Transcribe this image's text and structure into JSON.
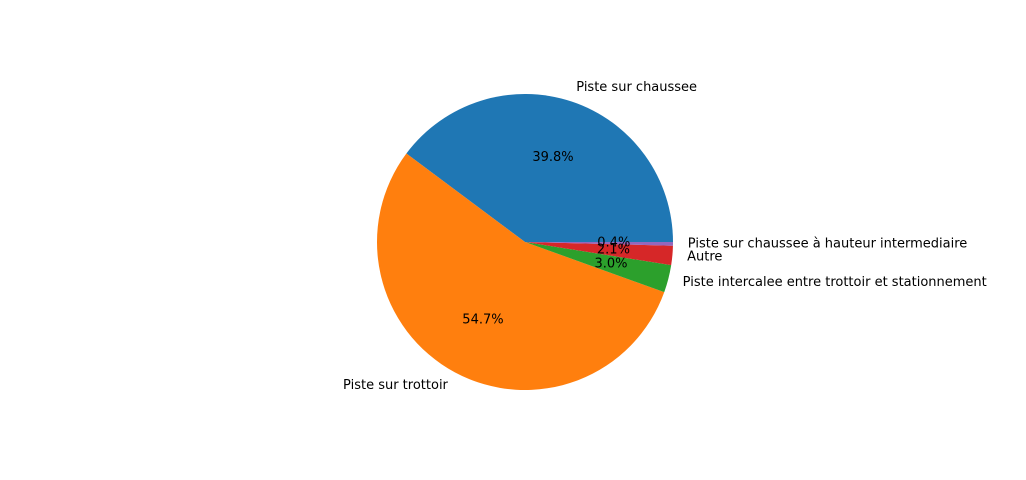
{
  "chart_data": {
    "type": "pie",
    "title": "",
    "start_angle_deg": 0,
    "direction": "counterclockwise",
    "slices": [
      {
        "label": "Piste sur chaussee",
        "value": 39.8,
        "pct_label": "39.8%",
        "color": "#1f77b4"
      },
      {
        "label": "Piste sur trottoir",
        "value": 54.7,
        "pct_label": "54.7%",
        "color": "#ff7f0e"
      },
      {
        "label": "Piste intercalee entre trottoir et stationnement",
        "value": 3.0,
        "pct_label": "3.0%",
        "color": "#2ca02c"
      },
      {
        "label": "Autre",
        "value": 2.1,
        "pct_label": "2.1%",
        "color": "#d62728"
      },
      {
        "label": "Piste sur chaussee à hauteur intermediaire",
        "value": 0.4,
        "pct_label": "0.4%",
        "color": "#9467bd"
      }
    ]
  }
}
